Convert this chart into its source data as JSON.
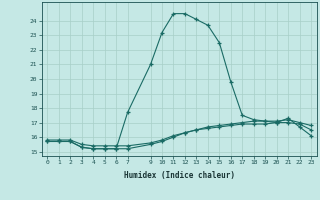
{
  "title": "",
  "xlabel": "Humidex (Indice chaleur)",
  "background_color": "#c5e8e5",
  "grid_color": "#a8cfc8",
  "line_color": "#1a6b65",
  "xlim": [
    -0.5,
    23.5
  ],
  "ylim": [
    14.7,
    25.3
  ],
  "xticks": [
    0,
    1,
    2,
    3,
    4,
    5,
    6,
    7,
    9,
    10,
    11,
    12,
    13,
    14,
    15,
    16,
    17,
    18,
    19,
    20,
    21,
    22,
    23
  ],
  "yticks": [
    15,
    16,
    17,
    18,
    19,
    20,
    21,
    22,
    23,
    24
  ],
  "curve1_x": [
    0,
    1,
    2,
    3,
    4,
    5,
    6,
    7,
    9,
    10,
    11,
    12,
    13,
    14,
    15,
    16,
    17,
    18,
    19,
    20,
    21,
    22,
    23
  ],
  "curve1_y": [
    15.7,
    15.7,
    15.7,
    15.3,
    15.2,
    15.2,
    15.2,
    17.7,
    21.0,
    23.2,
    24.5,
    24.5,
    24.1,
    23.7,
    22.5,
    19.8,
    17.5,
    17.2,
    17.1,
    17.0,
    17.3,
    16.7,
    16.1
  ],
  "curve2_x": [
    0,
    1,
    2,
    3,
    4,
    5,
    6,
    7,
    9,
    10,
    11,
    12,
    13,
    14,
    15,
    16,
    17,
    18,
    19,
    20,
    21,
    22,
    23
  ],
  "curve2_y": [
    15.7,
    15.7,
    15.7,
    15.3,
    15.2,
    15.2,
    15.2,
    15.2,
    15.5,
    15.7,
    16.0,
    16.3,
    16.5,
    16.7,
    16.8,
    16.9,
    17.0,
    17.1,
    17.1,
    17.1,
    17.2,
    17.0,
    16.8
  ],
  "curve3_x": [
    0,
    1,
    2,
    3,
    4,
    5,
    6,
    7,
    9,
    10,
    11,
    12,
    13,
    14,
    15,
    16,
    17,
    18,
    19,
    20,
    21,
    22,
    23
  ],
  "curve3_y": [
    15.8,
    15.8,
    15.8,
    15.5,
    15.4,
    15.4,
    15.4,
    15.4,
    15.6,
    15.8,
    16.1,
    16.3,
    16.5,
    16.6,
    16.7,
    16.8,
    16.9,
    16.9,
    16.9,
    17.0,
    17.0,
    16.9,
    16.5
  ]
}
